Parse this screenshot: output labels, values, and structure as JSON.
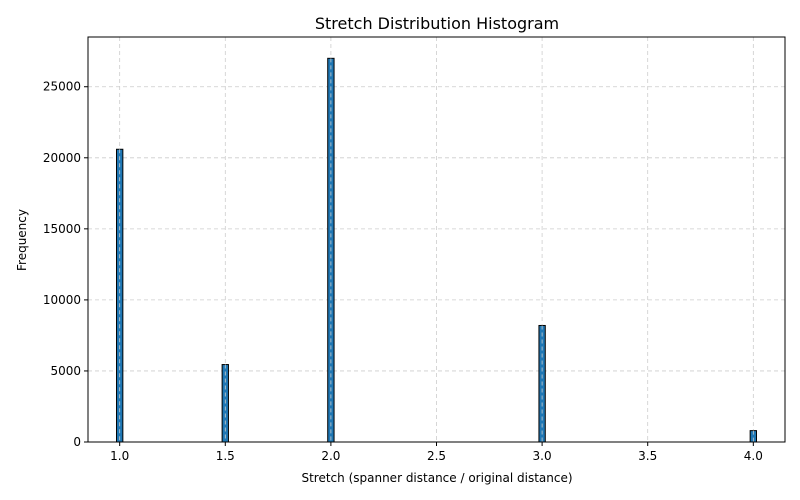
{
  "chart_data": {
    "type": "bar",
    "title": "Stretch Distribution Histogram",
    "xlabel": "Stretch (spanner distance / original distance)",
    "ylabel": "Frequency",
    "xlim": [
      0.85,
      4.15
    ],
    "ylim": [
      0,
      28500
    ],
    "x_ticks": [
      1.0,
      1.5,
      2.0,
      2.5,
      3.0,
      3.5,
      4.0
    ],
    "x_tick_labels": [
      "1.0",
      "1.5",
      "2.0",
      "2.5",
      "3.0",
      "3.5",
      "4.0"
    ],
    "y_ticks": [
      0,
      5000,
      10000,
      15000,
      20000,
      25000
    ],
    "y_tick_labels": [
      "0",
      "5000",
      "10000",
      "15000",
      "20000",
      "25000"
    ],
    "grid": true,
    "bin_width": 0.03,
    "bars": [
      {
        "x": 1.0,
        "value": 20600
      },
      {
        "x": 1.5,
        "value": 5450
      },
      {
        "x": 2.0,
        "value": 27000
      },
      {
        "x": 3.0,
        "value": 8200
      },
      {
        "x": 4.0,
        "value": 800
      }
    ],
    "bar_color": "#1f77b4",
    "edge_color": "#000000",
    "grid_color": "#cccccc"
  }
}
